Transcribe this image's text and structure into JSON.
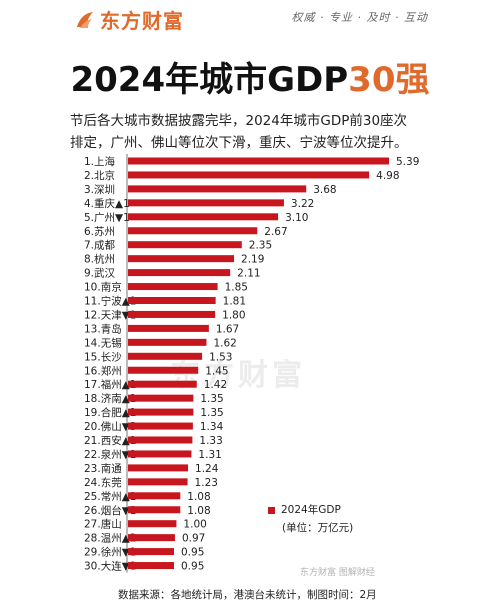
{
  "header": {
    "brand": "东方财富",
    "tagline": "权威 · 专业 · 及时 · 互动",
    "accent": "#e06a2c"
  },
  "title": {
    "main": "2024年城市GDP",
    "highlight": "30强"
  },
  "description": {
    "line1": "节后各大城市数据披露完毕，2024年城市GDP前30座次",
    "line2": "排定，广州、佛山等位次下滑，重庆、宁波等位次提升。"
  },
  "chart_data": {
    "type": "bar",
    "orientation": "horizontal",
    "bar_color": "#c8161e",
    "categories": [
      "1.上海",
      "2.北京",
      "3.深圳",
      "4.重庆▲1",
      "5.广州▼1",
      "6.苏州",
      "7.成都",
      "8.杭州",
      "9.武汉",
      "10.南京",
      "11.宁波▲1",
      "12.天津▼1",
      "13.青岛",
      "14.无锡",
      "15.长沙",
      "16.郑州",
      "17.福州▲1",
      "18.济南▲1",
      "19.合肥▲1",
      "20.佛山▼3",
      "21.西安▲1",
      "22.泉州▼1",
      "23.南通",
      "24.东莞",
      "25.常州▲1",
      "26.烟台▼1",
      "27.唐山",
      "28.温州▲2",
      "29.徐州▼1",
      "30.大连▼1"
    ],
    "series": [
      {
        "name": "2024年GDP",
        "values": [
          5.39,
          4.98,
          3.68,
          3.22,
          3.1,
          2.67,
          2.35,
          2.19,
          2.11,
          1.85,
          1.81,
          1.8,
          1.67,
          1.62,
          1.53,
          1.45,
          1.42,
          1.35,
          1.35,
          1.34,
          1.33,
          1.31,
          1.24,
          1.23,
          1.08,
          1.08,
          1.0,
          0.97,
          0.95,
          0.95
        ],
        "labels": [
          "5.39",
          "4.98",
          "3.68",
          "3.22",
          "3.10",
          "2.67",
          "2.35",
          "2.19",
          "2.11",
          "1.85",
          "1.81",
          "1.80",
          "1.67",
          "1.62",
          "1.53",
          "1.45",
          "1.42",
          "1.35",
          "1.35",
          "1.34",
          "1.33",
          "1.31",
          "1.24",
          "1.23",
          "1.08",
          "1.08",
          "1.00",
          "0.97",
          "0.95",
          "0.95"
        ]
      }
    ],
    "legend": {
      "series_label": "2024年GDP",
      "unit_label": "(单位：万亿元)",
      "placement": "bottom-right"
    },
    "xlim": [
      0,
      5.39
    ]
  },
  "watermark": {
    "main": "东方财富",
    "corner": "东方财富 图解财经"
  },
  "footer": {
    "source": "数据来源：各地统计局，港澳台未统计，制图时间：2月"
  }
}
